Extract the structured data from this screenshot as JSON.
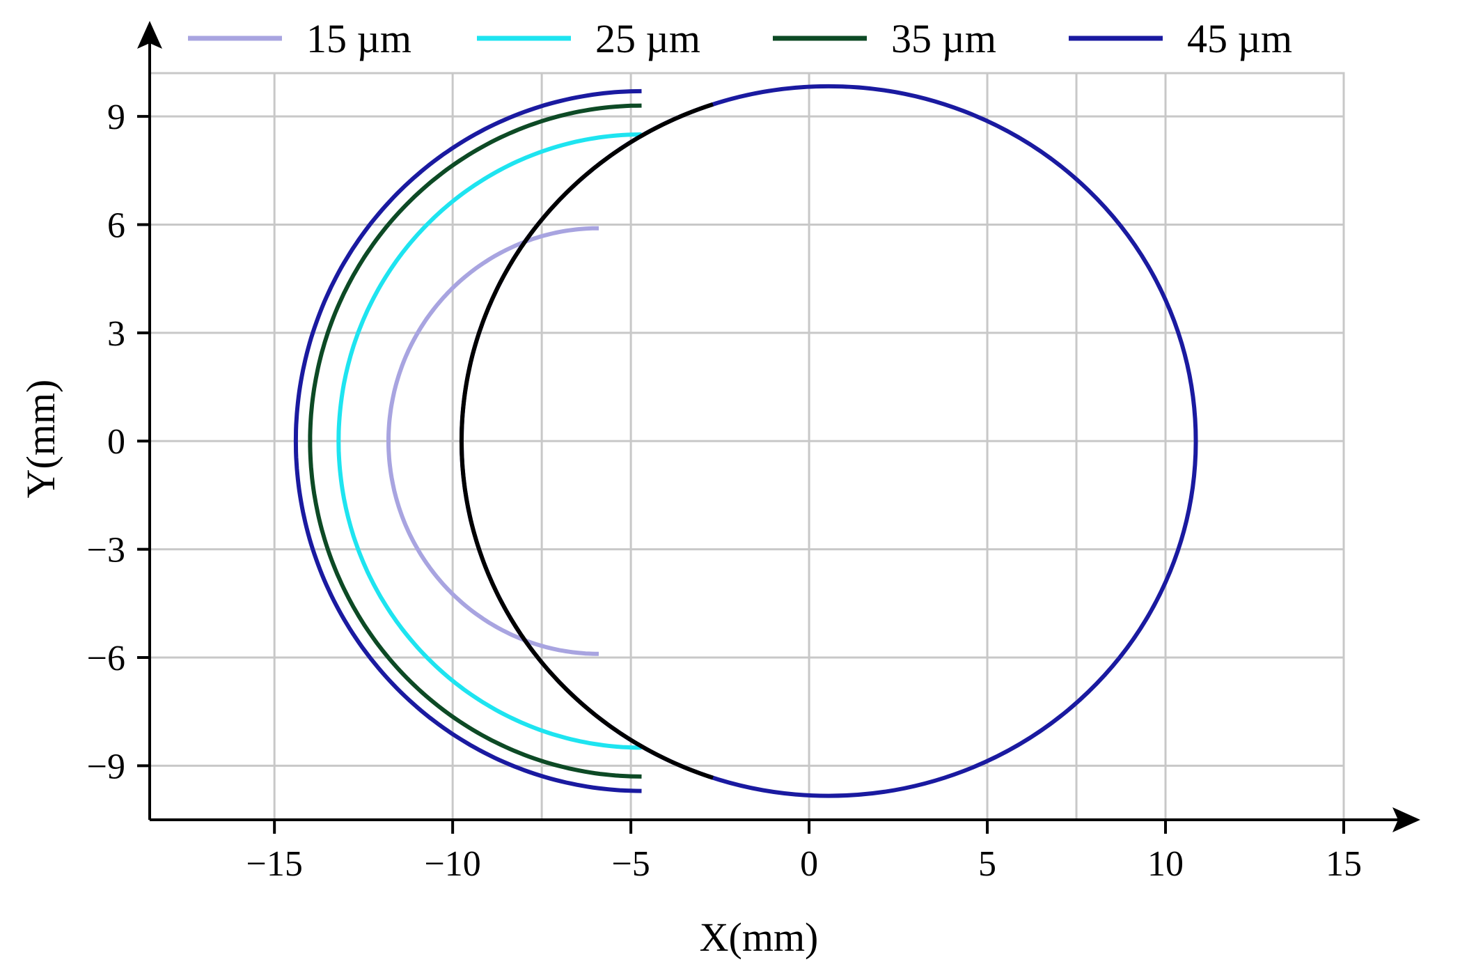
{
  "chart_data": {
    "type": "line",
    "title": "",
    "xlabel": "X(mm)",
    "ylabel": "Y(mm)",
    "xlim": [
      -18.5,
      15
    ],
    "ylim": [
      -10.5,
      10.2
    ],
    "xticks": [
      -15,
      -10,
      -5,
      0,
      5,
      10,
      15
    ],
    "xtick_labels": [
      "−15",
      "−10",
      "−5",
      "0",
      "5",
      "10",
      "15"
    ],
    "yticks": [
      -9,
      -6,
      -3,
      0,
      3,
      6,
      9
    ],
    "ytick_labels": [
      "−9",
      "−6",
      "−3",
      "0",
      "3",
      "6",
      "9"
    ],
    "grid": true,
    "legend_position": "top",
    "series": [
      {
        "name": "15 µm",
        "color": "#a8a4e0",
        "center": [
          -5.9,
          0
        ],
        "radius": 5.9,
        "arc_half_height": 6.3
      },
      {
        "name": "25 µm",
        "color": "#1ee4f0",
        "center": [
          -4.7,
          0
        ],
        "radius": 8.5,
        "arc_half_height": 8.5
      },
      {
        "name": "35 µm",
        "color": "#0d4a25",
        "center": [
          -4.7,
          0
        ],
        "radius": 9.3,
        "arc_half_height": 9.3
      },
      {
        "name": "45 µm",
        "color": "#1a1aa0",
        "center": [
          -4.7,
          0
        ],
        "radius": 9.7,
        "arc_half_height": 9.7
      }
    ],
    "reference_circle": {
      "color": "#1a1aa0",
      "left_arc_color": "#000000",
      "center": [
        0.55,
        0
      ],
      "radius": 10.3
    }
  }
}
